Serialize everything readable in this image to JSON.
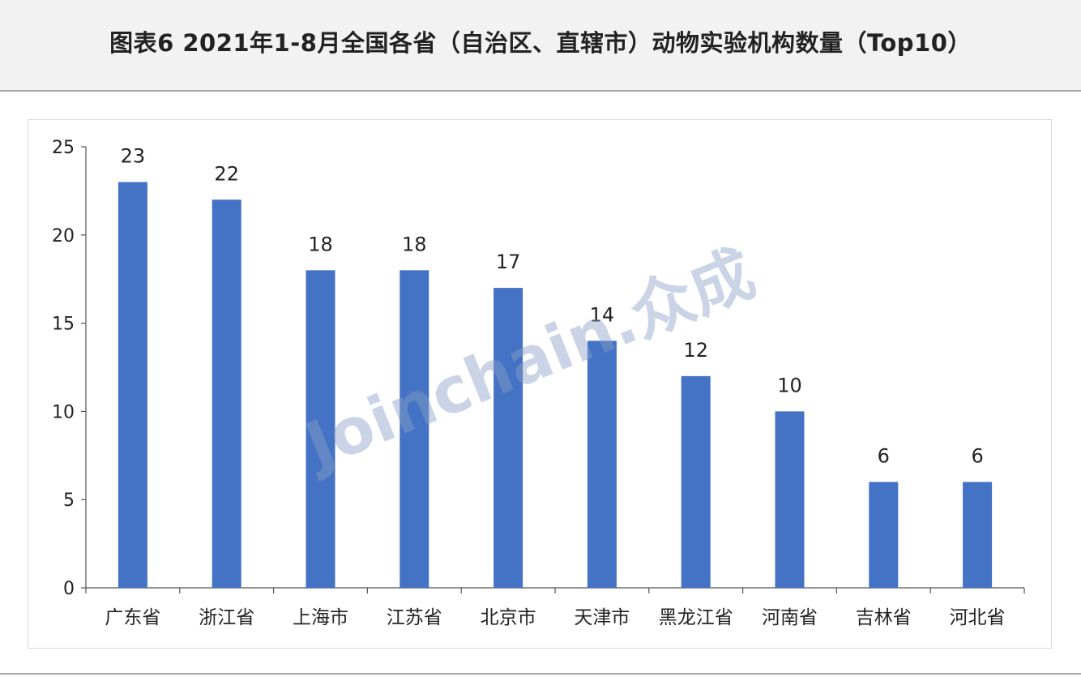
{
  "header": {
    "title": "图表6  2021年1-8月全国各省（自治区、直辖市）动物实验机构数量（Top10）"
  },
  "watermark": "Joinchain.众成",
  "chart_data": {
    "type": "bar",
    "title": "图表6  2021年1-8月全国各省（自治区、直辖市）动物实验机构数量（Top10）",
    "xlabel": "",
    "ylabel": "",
    "categories": [
      "广东省",
      "浙江省",
      "上海市",
      "江苏省",
      "北京市",
      "天津市",
      "黑龙江省",
      "河南省",
      "吉林省",
      "河北省"
    ],
    "values": [
      23,
      22,
      18,
      18,
      17,
      14,
      12,
      10,
      6,
      6
    ],
    "ylim": [
      0,
      25
    ],
    "yticks": [
      0,
      5,
      10,
      15,
      20,
      25
    ],
    "grid": false,
    "data_labels": true,
    "bar_color": "#4472c4"
  }
}
